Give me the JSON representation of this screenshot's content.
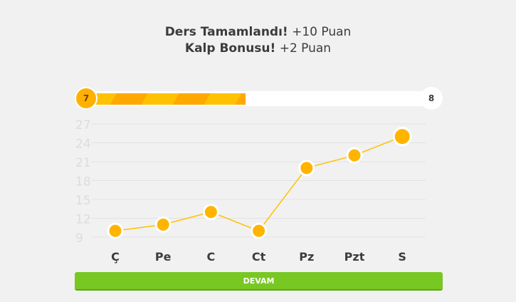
{
  "header": {
    "line1_bold": "Ders Tamamlandı!",
    "line1_rest": " +10 Puan",
    "line2_bold": "Kalp Bonusu!",
    "line2_rest": " +2 Puan"
  },
  "progress": {
    "current_level": "7",
    "next_level": "8",
    "percent": 46
  },
  "chart_data": {
    "type": "line",
    "categories": [
      "Ç",
      "Pe",
      "C",
      "Ct",
      "Pz",
      "Pzt",
      "S"
    ],
    "values": [
      10,
      11,
      13,
      10,
      20,
      22,
      25
    ],
    "yticks": [
      9,
      12,
      15,
      18,
      21,
      24,
      27
    ],
    "ylim": [
      9,
      27
    ],
    "grid": true,
    "colors": {
      "line": "#ffc200",
      "point": "#ffb400",
      "grid": "#e2e2e2"
    }
  },
  "footer": {
    "continue_label": "DEVAM"
  }
}
